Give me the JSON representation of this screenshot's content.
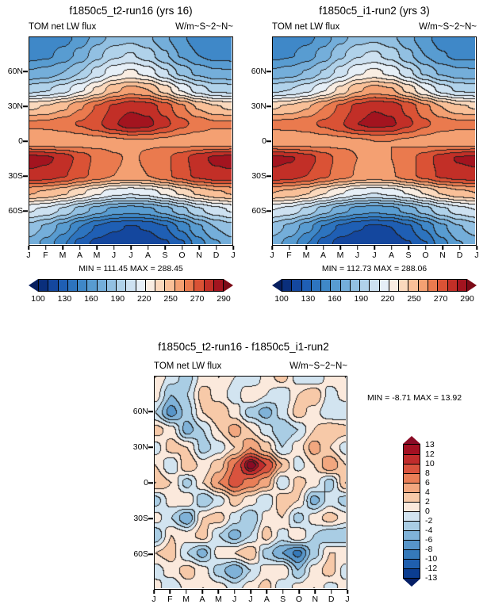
{
  "axes": {
    "lat_labels": [
      "60N",
      "30N",
      "0",
      "30S",
      "60S"
    ],
    "month_labels": [
      "J",
      "F",
      "M",
      "A",
      "M",
      "J",
      "J",
      "A",
      "S",
      "O",
      "N",
      "D",
      "J"
    ]
  },
  "chart_data": [
    {
      "id": "run16",
      "type": "filled-contour",
      "title": "f1850c5_t2-run16 (yrs 16)",
      "left_string": "TOM net LW flux",
      "right_string": "W/m~S~2~N~",
      "min": 111.45,
      "max": 288.45,
      "minmax_label": "MIN = 111.45 MAX = 288.45",
      "x_tick_labels": [
        "J",
        "F",
        "M",
        "A",
        "M",
        "J",
        "J",
        "A",
        "S",
        "O",
        "N",
        "D",
        "J"
      ],
      "y_tick_labels": [
        "60N",
        "30N",
        "0",
        "30S",
        "60S"
      ],
      "lat_grid": [
        90,
        75,
        60,
        45,
        30,
        15,
        0,
        -15,
        -30,
        -45,
        -60,
        -75,
        -90
      ],
      "levels": [
        100,
        110,
        120,
        130,
        140,
        150,
        160,
        170,
        180,
        190,
        200,
        210,
        220,
        230,
        240,
        250,
        260,
        270,
        280,
        290
      ],
      "colors": [
        "#071f60",
        "#0a2f7c",
        "#14479e",
        "#1f5fb4",
        "#2d74bf",
        "#3f88c8",
        "#589cd1",
        "#74aeda",
        "#92c0e2",
        "#b0d2ea",
        "#cde1f1",
        "#e6eff7",
        "#f9ede2",
        "#fbd9bd",
        "#f9c098",
        "#f4a072",
        "#ea7a4e",
        "#da5235",
        "#c22f27",
        "#a3141f",
        "#7c0a17"
      ],
      "colorbar_tick_labels": [
        "100",
        "130",
        "160",
        "190",
        "220",
        "250",
        "270",
        "290"
      ],
      "values": [
        [
          140,
          142,
          146,
          154,
          166,
          174,
          177,
          172,
          162,
          152,
          144,
          140,
          140
        ],
        [
          146,
          148,
          154,
          164,
          177,
          188,
          191,
          185,
          172,
          159,
          150,
          146,
          146
        ],
        [
          161,
          164,
          170,
          180,
          194,
          207,
          212,
          206,
          192,
          177,
          167,
          162,
          161
        ],
        [
          186,
          189,
          196,
          208,
          222,
          237,
          244,
          240,
          226,
          209,
          195,
          187,
          186
        ],
        [
          228,
          231,
          238,
          249,
          261,
          272,
          278,
          276,
          266,
          252,
          239,
          231,
          228
        ],
        [
          252,
          253,
          256,
          261,
          268,
          279,
          286,
          283,
          273,
          263,
          256,
          252,
          252
        ],
        [
          241,
          240,
          241,
          243,
          245,
          247,
          249,
          249,
          247,
          244,
          242,
          241,
          241
        ],
        [
          284,
          282,
          276,
          266,
          257,
          251,
          249,
          251,
          257,
          266,
          276,
          282,
          284
        ],
        [
          278,
          276,
          271,
          263,
          256,
          250,
          248,
          250,
          257,
          265,
          273,
          277,
          278
        ],
        [
          241,
          238,
          232,
          222,
          212,
          204,
          201,
          204,
          212,
          222,
          232,
          238,
          241
        ],
        [
          201,
          197,
          188,
          176,
          165,
          157,
          154,
          157,
          165,
          176,
          188,
          196,
          201
        ],
        [
          176,
          168,
          155,
          140,
          129,
          122,
          119,
          121,
          129,
          142,
          158,
          170,
          176
        ],
        [
          166,
          156,
          141,
          126,
          116,
          112,
          112,
          113,
          118,
          128,
          145,
          158,
          166
        ]
      ]
    },
    {
      "id": "run2",
      "type": "filled-contour",
      "title": "f1850c5_i1-run2 (yrs 3)",
      "left_string": "TOM net LW flux",
      "right_string": "W/m~S~2~N~",
      "min": 112.73,
      "max": 288.06,
      "minmax_label": "MIN = 112.73 MAX = 288.06",
      "x_tick_labels": [
        "J",
        "F",
        "M",
        "A",
        "M",
        "J",
        "J",
        "A",
        "S",
        "O",
        "N",
        "D",
        "J"
      ],
      "y_tick_labels": [
        "60N",
        "30N",
        "0",
        "30S",
        "60S"
      ],
      "lat_grid": [
        90,
        75,
        60,
        45,
        30,
        15,
        0,
        -15,
        -30,
        -45,
        -60,
        -75,
        -90
      ],
      "levels": [
        100,
        110,
        120,
        130,
        140,
        150,
        160,
        170,
        180,
        190,
        200,
        210,
        220,
        230,
        240,
        250,
        260,
        270,
        280,
        290
      ],
      "colors": [
        "#071f60",
        "#0a2f7c",
        "#14479e",
        "#1f5fb4",
        "#2d74bf",
        "#3f88c8",
        "#589cd1",
        "#74aeda",
        "#92c0e2",
        "#b0d2ea",
        "#cde1f1",
        "#e6eff7",
        "#f9ede2",
        "#fbd9bd",
        "#f9c098",
        "#f4a072",
        "#ea7a4e",
        "#da5235",
        "#c22f27",
        "#a3141f",
        "#7c0a17"
      ],
      "colorbar_tick_labels": [
        "100",
        "130",
        "160",
        "190",
        "220",
        "250",
        "270",
        "290"
      ],
      "values": [
        [
          141,
          143,
          147,
          155,
          167,
          175,
          178,
          173,
          163,
          153,
          145,
          141,
          141
        ],
        [
          147,
          149,
          155,
          165,
          178,
          189,
          192,
          186,
          173,
          160,
          151,
          147,
          147
        ],
        [
          162,
          165,
          171,
          181,
          195,
          208,
          213,
          207,
          193,
          178,
          168,
          163,
          162
        ],
        [
          187,
          190,
          197,
          209,
          223,
          238,
          245,
          241,
          227,
          210,
          196,
          188,
          187
        ],
        [
          229,
          232,
          239,
          250,
          262,
          273,
          279,
          277,
          267,
          253,
          240,
          232,
          229
        ],
        [
          253,
          254,
          257,
          262,
          269,
          280,
          284,
          282,
          272,
          262,
          255,
          253,
          253
        ],
        [
          242,
          241,
          242,
          244,
          246,
          248,
          250,
          250,
          248,
          245,
          243,
          242,
          242
        ],
        [
          283,
          281,
          275,
          265,
          256,
          250,
          248,
          250,
          256,
          265,
          275,
          281,
          283
        ],
        [
          277,
          275,
          270,
          262,
          255,
          249,
          247,
          249,
          256,
          264,
          272,
          276,
          277
        ],
        [
          240,
          237,
          231,
          221,
          211,
          203,
          200,
          203,
          211,
          221,
          231,
          237,
          240
        ],
        [
          200,
          196,
          187,
          175,
          164,
          156,
          153,
          156,
          164,
          175,
          187,
          195,
          200
        ],
        [
          175,
          167,
          154,
          139,
          128,
          121,
          118,
          120,
          128,
          141,
          157,
          169,
          175
        ],
        [
          165,
          155,
          140,
          125,
          115,
          113,
          113,
          114,
          119,
          129,
          146,
          159,
          165
        ]
      ]
    },
    {
      "id": "diff",
      "type": "filled-contour",
      "title": "f1850c5_t2-run16 - f1850c5_i1-run2",
      "left_string": "TOM net LW flux",
      "right_string": "W/m~S~2~N~",
      "min": -8.71,
      "max": 13.92,
      "minmax_label": "MIN = -8.71 MAX = 13.92",
      "x_tick_labels": [
        "J",
        "F",
        "M",
        "A",
        "M",
        "J",
        "J",
        "A",
        "S",
        "O",
        "N",
        "D",
        "J"
      ],
      "y_tick_labels": [
        "60N",
        "30N",
        "0",
        "30S",
        "60S"
      ],
      "lat_grid": [
        90,
        75,
        60,
        45,
        30,
        15,
        0,
        -15,
        -30,
        -45,
        -60,
        -75,
        -90
      ],
      "levels": [
        -13,
        -12,
        -10,
        -8,
        -6,
        -4,
        -2,
        0,
        2,
        4,
        6,
        8,
        10,
        12,
        13
      ],
      "colors": [
        "#051f66",
        "#0b3d91",
        "#1f5fae",
        "#3579b9",
        "#5795c9",
        "#7fb2d8",
        "#a9cde4",
        "#d2e4f0",
        "#fbe9dc",
        "#f7c9a8",
        "#f2a77f",
        "#e97e57",
        "#d9533e",
        "#c02c2c",
        "#a31022",
        "#8a0b25"
      ],
      "colorbar_tick_labels": [
        "13",
        "12",
        "10",
        "8",
        "6",
        "4",
        "2",
        "0",
        "-2",
        "-4",
        "-6",
        "-8",
        "-10",
        "-12",
        "-13"
      ],
      "values": [
        [
          2,
          -1,
          -3,
          1,
          2,
          0,
          -2,
          1,
          3,
          -1,
          -2,
          1,
          2
        ],
        [
          1,
          -4,
          -2,
          3,
          1,
          -1,
          2,
          0,
          -2,
          2,
          4,
          -1,
          1
        ],
        [
          -2,
          -7,
          -3,
          2,
          4,
          1,
          -3,
          -5,
          -1,
          3,
          1,
          -2,
          -2
        ],
        [
          3,
          1,
          -5,
          -2,
          2,
          5,
          2,
          -1,
          -4,
          -2,
          2,
          4,
          3
        ],
        [
          -1,
          3,
          2,
          -3,
          -1,
          2,
          6,
          3,
          -2,
          1,
          5,
          2,
          -1
        ],
        [
          2,
          -2,
          4,
          1,
          3,
          8,
          13.9,
          10,
          4,
          -1,
          2,
          6,
          2
        ],
        [
          4,
          2,
          -3,
          2,
          6,
          9,
          7,
          5,
          -2,
          3,
          1,
          -3,
          4
        ],
        [
          -3,
          1,
          2,
          -4,
          -1,
          3,
          1,
          -2,
          4,
          2,
          -5,
          -1,
          -3
        ],
        [
          1,
          -2,
          -6,
          2,
          3,
          -1,
          -4,
          1,
          2,
          -3,
          1,
          3,
          1
        ],
        [
          -4,
          2,
          1,
          3,
          -2,
          -5,
          -2,
          3,
          -1,
          2,
          -2,
          -4,
          -4
        ],
        [
          2,
          3,
          -2,
          -5,
          1,
          2,
          4,
          -3,
          -6,
          -8.7,
          -3,
          2,
          2
        ],
        [
          -1,
          1,
          3,
          1,
          -3,
          -6,
          -2,
          1,
          2,
          -4,
          1,
          3,
          -1
        ],
        [
          1,
          -2,
          1,
          2,
          1,
          -1,
          1,
          3,
          -2,
          1,
          2,
          -1,
          1
        ]
      ]
    }
  ]
}
